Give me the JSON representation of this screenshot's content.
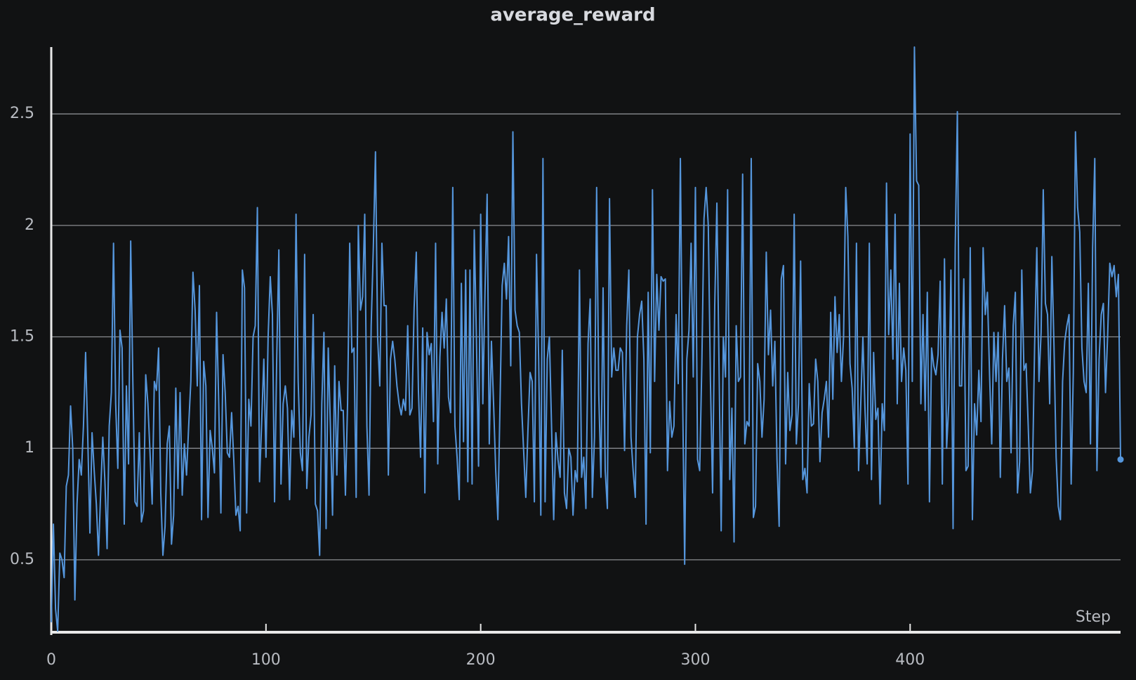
{
  "chart_data": {
    "type": "line",
    "title": "average_reward",
    "x_label": "Step",
    "color": "#5596dc",
    "grid": true,
    "xlim": [
      0,
      498
    ],
    "xticks": [
      0,
      100,
      200,
      300,
      400
    ],
    "ylim": [
      0.175,
      2.8
    ],
    "yticks": [
      0.5,
      1,
      1.5,
      2,
      2.5
    ],
    "x": [
      0,
      1,
      2,
      3,
      4,
      5,
      6,
      7,
      8,
      9,
      10,
      11,
      12,
      13,
      14,
      15,
      16,
      17,
      18,
      19,
      20,
      21,
      22,
      23,
      24,
      25,
      26,
      27,
      28,
      29,
      30,
      31,
      32,
      33,
      34,
      35,
      36,
      37,
      38,
      39,
      40,
      41,
      42,
      43,
      44,
      45,
      46,
      47,
      48,
      49,
      50,
      51,
      52,
      53,
      54,
      55,
      56,
      57,
      58,
      59,
      60,
      61,
      62,
      63,
      64,
      65,
      66,
      67,
      68,
      69,
      70,
      71,
      72,
      73,
      74,
      75,
      76,
      77,
      78,
      79,
      80,
      81,
      82,
      83,
      84,
      85,
      86,
      87,
      88,
      89,
      90,
      91,
      92,
      93,
      94,
      95,
      96,
      97,
      98,
      99,
      100,
      101,
      102,
      103,
      104,
      105,
      106,
      107,
      108,
      109,
      110,
      111,
      112,
      113,
      114,
      115,
      116,
      117,
      118,
      119,
      120,
      121,
      122,
      123,
      124,
      125,
      126,
      127,
      128,
      129,
      130,
      131,
      132,
      133,
      134,
      135,
      136,
      137,
      138,
      139,
      140,
      141,
      142,
      143,
      144,
      145,
      146,
      147,
      148,
      149,
      150,
      151,
      152,
      153,
      154,
      155,
      156,
      157,
      158,
      159,
      160,
      161,
      162,
      163,
      164,
      165,
      166,
      167,
      168,
      169,
      170,
      171,
      172,
      173,
      174,
      175,
      176,
      177,
      178,
      179,
      180,
      181,
      182,
      183,
      184,
      185,
      186,
      187,
      188,
      189,
      190,
      191,
      192,
      193,
      194,
      195,
      196,
      197,
      198,
      199,
      200,
      201,
      202,
      203,
      204,
      205,
      206,
      207,
      208,
      209,
      210,
      211,
      212,
      213,
      214,
      215,
      216,
      217,
      218,
      219,
      220,
      221,
      222,
      223,
      224,
      225,
      226,
      227,
      228,
      229,
      230,
      231,
      232,
      233,
      234,
      235,
      236,
      237,
      238,
      239,
      240,
      241,
      242,
      243,
      244,
      245,
      246,
      247,
      248,
      249,
      250,
      251,
      252,
      253,
      254,
      255,
      256,
      257,
      258,
      259,
      260,
      261,
      262,
      263,
      264,
      265,
      266,
      267,
      268,
      269,
      270,
      271,
      272,
      273,
      274,
      275,
      276,
      277,
      278,
      279,
      280,
      281,
      282,
      283,
      284,
      285,
      286,
      287,
      288,
      289,
      290,
      291,
      292,
      293,
      294,
      295,
      296,
      297,
      298,
      299,
      300,
      301,
      302,
      303,
      304,
      305,
      306,
      307,
      308,
      309,
      310,
      311,
      312,
      313,
      314,
      315,
      316,
      317,
      318,
      319,
      320,
      321,
      322,
      323,
      324,
      325,
      326,
      327,
      328,
      329,
      330,
      331,
      332,
      333,
      334,
      335,
      336,
      337,
      338,
      339,
      340,
      341,
      342,
      343,
      344,
      345,
      346,
      347,
      348,
      349,
      350,
      351,
      352,
      353,
      354,
      355,
      356,
      357,
      358,
      359,
      360,
      361,
      362,
      363,
      364,
      365,
      366,
      367,
      368,
      369,
      370,
      371,
      372,
      373,
      374,
      375,
      376,
      377,
      378,
      379,
      380,
      381,
      382,
      383,
      384,
      385,
      386,
      387,
      388,
      389,
      390,
      391,
      392,
      393,
      394,
      395,
      396,
      397,
      398,
      399,
      400,
      401,
      402,
      403,
      404,
      405,
      406,
      407,
      408,
      409,
      410,
      411,
      412,
      413,
      414,
      415,
      416,
      417,
      418,
      419,
      420,
      421,
      422,
      423,
      424,
      425,
      426,
      427,
      428,
      429,
      430,
      431,
      432,
      433,
      434,
      435,
      436,
      437,
      438,
      439,
      440,
      441,
      442,
      443,
      444,
      445,
      446,
      447,
      448,
      449,
      450,
      451,
      452,
      453,
      454,
      455,
      456,
      457,
      458,
      459,
      460,
      461,
      462,
      463,
      464,
      465,
      466,
      467,
      468,
      469,
      470,
      471,
      472,
      473,
      474,
      475,
      476,
      477,
      478,
      479,
      480,
      481,
      482,
      483,
      484,
      485,
      486,
      487,
      488,
      489,
      490,
      491,
      492,
      493,
      494,
      495,
      496,
      497,
      498
    ],
    "values": [
      0.22,
      0.66,
      0.28,
      0.18,
      0.53,
      0.5,
      0.42,
      0.83,
      0.88,
      1.19,
      1.0,
      0.32,
      0.75,
      0.95,
      0.88,
      1.1,
      1.43,
      1.05,
      0.62,
      1.07,
      0.9,
      0.75,
      0.52,
      0.8,
      1.05,
      0.85,
      0.55,
      1.1,
      1.25,
      1.92,
      1.2,
      0.91,
      1.53,
      1.45,
      0.66,
      1.28,
      0.93,
      1.93,
      1.3,
      0.76,
      0.74,
      1.07,
      0.67,
      0.72,
      1.33,
      1.2,
      0.98,
      0.75,
      1.3,
      1.26,
      1.45,
      0.8,
      0.52,
      0.65,
      1.02,
      1.1,
      0.57,
      0.7,
      1.27,
      0.82,
      1.25,
      0.79,
      1.02,
      0.88,
      1.1,
      1.3,
      1.79,
      1.62,
      1.28,
      1.73,
      0.68,
      1.39,
      1.28,
      0.69,
      1.08,
      1.0,
      0.89,
      1.61,
      1.2,
      0.71,
      1.42,
      1.25,
      0.98,
      0.96,
      1.16,
      0.95,
      0.7,
      0.74,
      0.63,
      1.8,
      1.72,
      0.71,
      1.22,
      1.1,
      1.5,
      1.55,
      2.08,
      0.85,
      1.12,
      1.4,
      0.96,
      1.5,
      1.77,
      1.6,
      0.76,
      1.4,
      1.89,
      0.84,
      1.2,
      1.28,
      1.18,
      0.77,
      1.17,
      1.05,
      2.05,
      1.3,
      0.98,
      0.9,
      1.87,
      0.82,
      1.05,
      1.15,
      1.6,
      0.75,
      0.72,
      0.52,
      1.2,
      1.52,
      0.64,
      1.45,
      1.1,
      0.7,
      1.37,
      0.88,
      1.3,
      1.17,
      1.17,
      0.79,
      1.2,
      1.92,
      1.43,
      1.45,
      0.78,
      2.0,
      1.62,
      1.68,
      2.05,
      1.1,
      0.79,
      1.55,
      1.9,
      2.33,
      1.5,
      1.28,
      1.92,
      1.64,
      1.64,
      0.88,
      1.4,
      1.48,
      1.4,
      1.28,
      1.2,
      1.15,
      1.22,
      1.17,
      1.55,
      1.15,
      1.18,
      1.63,
      1.88,
      1.26,
      0.96,
      1.54,
      0.8,
      1.52,
      1.42,
      1.47,
      1.12,
      1.92,
      0.93,
      1.41,
      1.61,
      1.45,
      1.67,
      1.23,
      1.16,
      2.17,
      1.1,
      0.96,
      0.77,
      1.74,
      1.03,
      1.8,
      0.85,
      1.8,
      0.84,
      1.98,
      1.5,
      0.92,
      2.05,
      1.2,
      1.7,
      2.14,
      1.02,
      1.48,
      1.2,
      0.9,
      0.68,
      1.2,
      1.73,
      1.83,
      1.67,
      1.95,
      1.37,
      2.42,
      1.62,
      1.55,
      1.52,
      1.2,
      0.99,
      0.78,
      1.08,
      1.34,
      1.3,
      0.76,
      1.87,
      1.4,
      0.7,
      2.3,
      0.76,
      1.4,
      1.5,
      1.1,
      0.68,
      1.07,
      0.95,
      0.87,
      1.44,
      0.8,
      0.73,
      1.0,
      0.96,
      0.7,
      0.9,
      0.85,
      1.8,
      0.87,
      0.96,
      0.73,
      1.47,
      1.67,
      0.78,
      1.05,
      2.17,
      1.24,
      0.87,
      1.72,
      0.9,
      0.73,
      2.12,
      1.32,
      1.45,
      1.35,
      1.35,
      1.45,
      1.43,
      0.99,
      1.55,
      1.8,
      1.05,
      0.9,
      0.78,
      1.5,
      1.6,
      1.66,
      1.4,
      0.66,
      1.7,
      0.98,
      2.16,
      1.3,
      1.78,
      1.53,
      1.77,
      1.75,
      1.76,
      0.9,
      1.21,
      1.05,
      1.1,
      1.6,
      1.29,
      2.3,
      1.27,
      0.48,
      1.4,
      1.53,
      1.92,
      1.32,
      2.17,
      0.95,
      0.9,
      1.38,
      2.03,
      2.17,
      2.0,
      1.3,
      0.8,
      1.64,
      2.1,
      1.37,
      0.63,
      1.5,
      1.32,
      2.16,
      0.86,
      1.18,
      0.58,
      1.55,
      1.3,
      1.32,
      2.23,
      1.02,
      1.12,
      1.1,
      2.3,
      0.69,
      0.74,
      1.38,
      1.3,
      1.05,
      1.22,
      1.88,
      1.42,
      1.62,
      1.28,
      1.48,
      0.95,
      0.65,
      1.76,
      1.82,
      0.93,
      1.34,
      1.08,
      1.15,
      2.05,
      1.02,
      1.2,
      1.84,
      0.86,
      0.91,
      0.8,
      1.29,
      1.1,
      1.11,
      1.4,
      1.3,
      0.94,
      1.16,
      1.22,
      1.3,
      1.05,
      1.61,
      1.22,
      1.68,
      1.43,
      1.6,
      1.3,
      1.5,
      2.17,
      1.95,
      1.38,
      1.27,
      1.0,
      1.92,
      0.9,
      1.2,
      1.5,
      1.17,
      0.93,
      1.92,
      0.86,
      1.43,
      1.13,
      1.18,
      0.75,
      1.2,
      1.08,
      2.19,
      1.51,
      1.8,
      1.4,
      2.05,
      1.2,
      1.74,
      1.3,
      1.45,
      1.35,
      0.84,
      2.41,
      1.3,
      2.8,
      2.2,
      2.18,
      1.2,
      1.6,
      1.17,
      1.7,
      0.76,
      1.45,
      1.37,
      1.33,
      1.42,
      1.75,
      0.84,
      1.85,
      1.0,
      1.2,
      1.8,
      0.64,
      1.9,
      2.51,
      1.28,
      1.28,
      1.76,
      0.9,
      0.92,
      1.9,
      0.68,
      1.2,
      1.06,
      1.35,
      1.12,
      1.9,
      1.6,
      1.7,
      1.33,
      1.02,
      1.52,
      1.3,
      1.52,
      0.87,
      1.4,
      1.64,
      1.3,
      1.36,
      0.98,
      1.55,
      1.7,
      0.8,
      0.94,
      1.8,
      1.35,
      1.38,
      1.1,
      0.8,
      0.9,
      1.47,
      1.9,
      1.3,
      1.52,
      2.16,
      1.65,
      1.6,
      1.2,
      1.86,
      1.46,
      0.96,
      0.74,
      0.68,
      1.3,
      1.48,
      1.55,
      1.6,
      0.84,
      1.34,
      2.42,
      2.08,
      1.97,
      1.45,
      1.3,
      1.25,
      1.74,
      1.02,
      1.9,
      2.3,
      0.9,
      1.4,
      1.6,
      1.65,
      1.25,
      1.51,
      1.83,
      1.77,
      1.82,
      1.68,
      1.78,
      0.95
    ]
  }
}
